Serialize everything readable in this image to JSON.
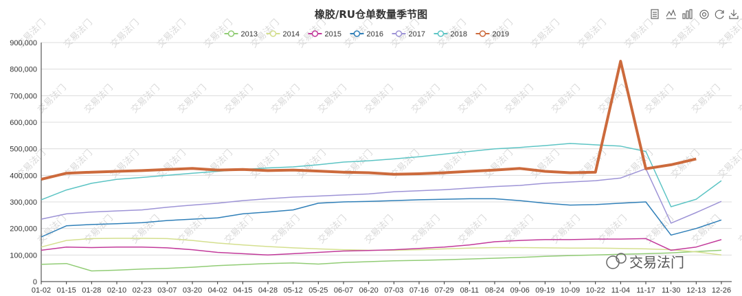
{
  "chart_data": {
    "type": "line",
    "title": "橡胶/RU仓单数量季节图",
    "xlabel": "",
    "ylabel": "",
    "ylim": [
      0,
      900000
    ],
    "yticks": [
      "0",
      "100,000",
      "200,000",
      "300,000",
      "400,000",
      "500,000",
      "600,000",
      "700,000",
      "800,000",
      "900,000"
    ],
    "categories": [
      "01-02",
      "01-15",
      "01-28",
      "02-10",
      "02-23",
      "03-07",
      "03-20",
      "04-02",
      "04-15",
      "04-28",
      "05-12",
      "05-25",
      "06-07",
      "06-20",
      "07-03",
      "07-16",
      "07-29",
      "08-11",
      "08-24",
      "09-06",
      "09-19",
      "10-09",
      "10-22",
      "11-04",
      "11-17",
      "11-30",
      "12-13",
      "12-26"
    ],
    "legend_position": "top-center",
    "grid": true,
    "series": [
      {
        "name": "2013",
        "color": "#91cc75",
        "values": [
          65000,
          68000,
          40000,
          43000,
          47000,
          50000,
          54000,
          60000,
          64000,
          68000,
          70000,
          66000,
          72000,
          75000,
          78000,
          80000,
          82000,
          85000,
          88000,
          91000,
          95000,
          98000,
          100000,
          103000,
          105000,
          108000,
          113000,
          118000
        ]
      },
      {
        "name": "2014",
        "color": "#d4df8e",
        "values": [
          130000,
          155000,
          162000,
          163000,
          163000,
          162000,
          155000,
          145000,
          138000,
          132000,
          127000,
          123000,
          120000,
          118000,
          118000,
          120000,
          123000,
          126000,
          128000,
          128000,
          127000,
          126000,
          126000,
          125000,
          123000,
          120000,
          112000,
          100000
        ]
      },
      {
        "name": "2015",
        "color": "#c2399a",
        "values": [
          118000,
          130000,
          128000,
          130000,
          130000,
          127000,
          120000,
          110000,
          105000,
          100000,
          105000,
          110000,
          115000,
          117000,
          120000,
          125000,
          130000,
          138000,
          150000,
          155000,
          158000,
          158000,
          160000,
          160000,
          162000,
          118000,
          130000,
          158000
        ]
      },
      {
        "name": "2016",
        "color": "#2f7fb8",
        "values": [
          168000,
          210000,
          215000,
          218000,
          222000,
          230000,
          235000,
          240000,
          255000,
          262000,
          270000,
          295000,
          300000,
          302000,
          305000,
          308000,
          310000,
          312000,
          312000,
          305000,
          295000,
          288000,
          290000,
          295000,
          300000,
          175000,
          200000,
          232000
        ]
      },
      {
        "name": "2017",
        "color": "#9d93d6",
        "values": [
          235000,
          255000,
          262000,
          266000,
          270000,
          280000,
          288000,
          295000,
          305000,
          312000,
          318000,
          322000,
          326000,
          330000,
          338000,
          342000,
          346000,
          352000,
          358000,
          362000,
          370000,
          375000,
          380000,
          390000,
          425000,
          220000,
          260000,
          302000
        ]
      },
      {
        "name": "2018",
        "color": "#5cc4c4",
        "values": [
          308000,
          345000,
          370000,
          385000,
          392000,
          400000,
          408000,
          415000,
          422000,
          428000,
          432000,
          440000,
          450000,
          455000,
          462000,
          470000,
          480000,
          490000,
          500000,
          505000,
          512000,
          520000,
          515000,
          510000,
          490000,
          282000,
          310000,
          380000
        ]
      },
      {
        "name": "2019",
        "color": "#cc6a3c",
        "values": [
          385000,
          408000,
          412000,
          415000,
          418000,
          422000,
          426000,
          420000,
          422000,
          418000,
          420000,
          416000,
          412000,
          410000,
          404000,
          406000,
          410000,
          415000,
          420000,
          426000,
          415000,
          410000,
          412000,
          830000,
          425000,
          440000,
          462000,
          null
        ]
      }
    ],
    "annotations": [
      "交易法门"
    ]
  },
  "toolbar": {
    "icons": [
      "data-view-icon",
      "line-chart-icon",
      "bar-chart-icon",
      "restore-icon",
      "refresh-icon",
      "download-icon"
    ]
  },
  "watermark": {
    "text": "交易法门",
    "brand": "交易法门"
  }
}
